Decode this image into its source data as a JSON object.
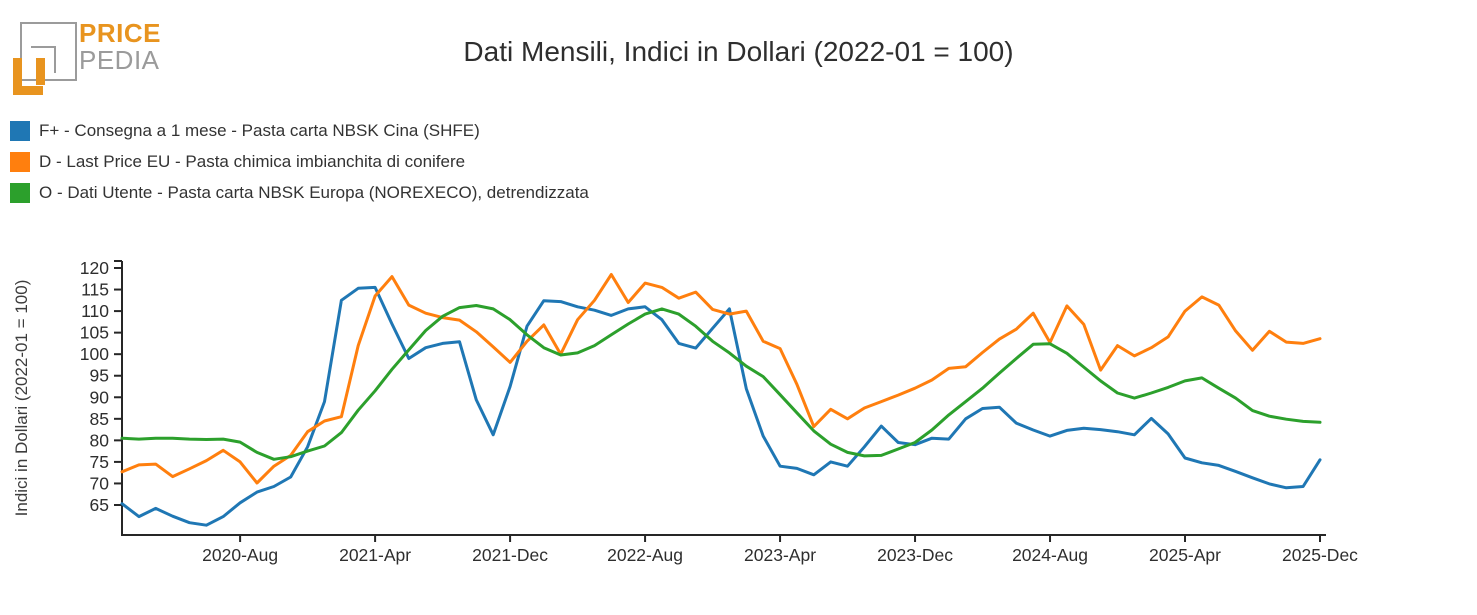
{
  "logo": {
    "line1": "PRICE",
    "line2": "PEDIA",
    "color_primary": "#e8941f",
    "color_secondary": "#9b9b9b"
  },
  "title": "Dati Mensili, Indici in Dollari (2022-01 = 100)",
  "chart_data": {
    "type": "line",
    "title": "Dati Mensili, Indici in Dollari (2022-01 = 100)",
    "xlabel": "",
    "ylabel": "Indici in Dollari (2022-01 = 100)",
    "ylim": [
      58,
      121.5
    ],
    "yticks": [
      65,
      70,
      75,
      80,
      85,
      90,
      95,
      100,
      105,
      110,
      115,
      120
    ],
    "grid": false,
    "legend_position": "top-left",
    "axis_color": "#262626",
    "tick_label_color": "#2e2e2e",
    "xtick_labels": [
      "2020-Aug",
      "2021-Apr",
      "2021-Dec",
      "2022-Aug",
      "2023-Apr",
      "2023-Dec",
      "2024-Aug",
      "2025-Apr",
      "2025-Dec"
    ],
    "xtick_month_indices": [
      7,
      15,
      23,
      31,
      39,
      47,
      55,
      63,
      71
    ],
    "x_months": [
      "2020-01",
      "2020-02",
      "2020-03",
      "2020-04",
      "2020-05",
      "2020-06",
      "2020-07",
      "2020-08",
      "2020-09",
      "2020-10",
      "2020-11",
      "2020-12",
      "2021-01",
      "2021-02",
      "2021-03",
      "2021-04",
      "2021-05",
      "2021-06",
      "2021-07",
      "2021-08",
      "2021-09",
      "2021-10",
      "2021-11",
      "2021-12",
      "2022-01",
      "2022-02",
      "2022-03",
      "2022-04",
      "2022-05",
      "2022-06",
      "2022-07",
      "2022-08",
      "2022-09",
      "2022-10",
      "2022-11",
      "2022-12",
      "2023-01",
      "2023-02",
      "2023-03",
      "2023-04",
      "2023-05",
      "2023-06",
      "2023-07",
      "2023-08",
      "2023-09",
      "2023-10",
      "2023-11",
      "2023-12",
      "2024-01",
      "2024-02",
      "2024-03",
      "2024-04",
      "2024-05",
      "2024-06",
      "2024-07",
      "2024-08",
      "2024-09",
      "2024-10",
      "2024-11",
      "2024-12",
      "2025-01",
      "2025-02",
      "2025-03",
      "2025-04",
      "2025-05",
      "2025-06",
      "2025-07",
      "2025-08",
      "2025-09",
      "2025-10",
      "2025-11",
      "2025-12"
    ],
    "series": [
      {
        "name": "F+ - Consegna a 1 mese - Pasta carta NBSK Cina (SHFE)",
        "color": "#1f77b4",
        "values": [
          65.3,
          62.3,
          64.2,
          62.4,
          60.9,
          60.3,
          62.3,
          65.5,
          68,
          69.3,
          71.5,
          78.5,
          89,
          112.5,
          115.3,
          115.5,
          107,
          99,
          101.5,
          102.5,
          102.9,
          89.4,
          81.3,
          92.5,
          106.5,
          112.4,
          112.2,
          111,
          110.2,
          109,
          110.5,
          111,
          108,
          102.5,
          101.4,
          106,
          110.5,
          92,
          81,
          74,
          73.5,
          72,
          75,
          74,
          78.5,
          83.3,
          79.5,
          79,
          80.5,
          80.3,
          85,
          87.4,
          87.7,
          84,
          82.4,
          81,
          82.3,
          82.8,
          82.5,
          82,
          81.3,
          85.1,
          81.5,
          75.9,
          74.8,
          74.2,
          72.8,
          71.3,
          69.9,
          69,
          69.3,
          75.5
        ]
      },
      {
        "name": "D - Last Price EU - Pasta chimica imbianchita di conifere",
        "color": "#ff7f0e",
        "values": [
          72.7,
          74.3,
          74.5,
          71.6,
          73.4,
          75.3,
          77.7,
          75,
          70.1,
          74,
          76.5,
          82,
          84.5,
          85.5,
          102,
          113.5,
          118,
          111.4,
          109.5,
          108.5,
          107.9,
          105.2,
          101.7,
          98.1,
          103,
          106.8,
          100,
          108,
          112.5,
          118.5,
          112,
          116.5,
          115.5,
          113,
          114.4,
          110.4,
          109.3,
          110,
          103,
          101.3,
          93,
          83.2,
          87.2,
          85,
          87.5,
          89,
          90.5,
          92.1,
          94,
          96.7,
          97.1,
          100.4,
          103.5,
          105.8,
          109.5,
          102.7,
          111.2,
          106.9,
          96.3,
          102,
          99.6,
          101.5,
          104,
          110,
          113.3,
          111.4,
          105.4,
          100.9,
          105.3,
          102.8,
          102.5,
          103.6
        ]
      },
      {
        "name": "O - Dati Utente - Pasta carta NBSK Europa (NOREXECO), detrendizzata",
        "color": "#2ca02c",
        "values": [
          80.5,
          80.3,
          80.5,
          80.5,
          80.3,
          80.2,
          80.3,
          79.6,
          77.2,
          75.6,
          76.2,
          77.5,
          78.7,
          81.8,
          87,
          91.5,
          96.5,
          101,
          105.5,
          108.8,
          110.8,
          111.3,
          110.5,
          108,
          104.5,
          101.5,
          99.8,
          100.3,
          102,
          104.5,
          107,
          109.3,
          110.5,
          109.3,
          106.5,
          103,
          100.3,
          97.2,
          94.8,
          90.6,
          86.4,
          82.2,
          79.1,
          77.2,
          76.4,
          76.5,
          78,
          79.5,
          82.4,
          85.9,
          89,
          92.1,
          95.6,
          99,
          102.3,
          102.4,
          100.2,
          97,
          93.8,
          91,
          89.8,
          91,
          92.3,
          93.8,
          94.5,
          92.1,
          89.8,
          86.9,
          85.6,
          84.9,
          84.4,
          84.2
        ]
      }
    ]
  }
}
